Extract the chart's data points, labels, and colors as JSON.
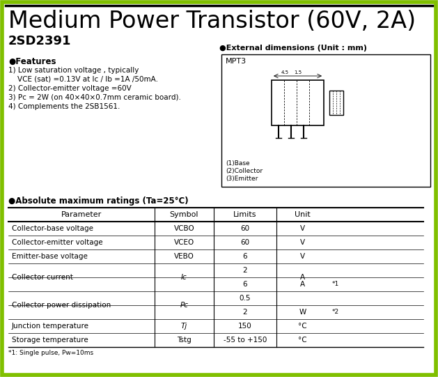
{
  "bg_color": "#e8e8e8",
  "border_color": "#80c000",
  "title": "Medium Power Transistor (60V, 2A)",
  "subtitle": "2SD2391",
  "title_fontsize": 24,
  "subtitle_fontsize": 13,
  "features_header": "●Features",
  "feature_lines": [
    "1) Low saturation voltage , typically",
    "    VCE (sat) =0.13V at Ic / Ib =1A /50mA.",
    "2) Collector-emitter voltage =60V",
    "3) Pc = 2W (on 40×40×0.7mm ceramic board).",
    "4) Complements the 2SB1561."
  ],
  "ext_dim_header": "●External dimensions (Unit : mm)",
  "ext_dim_package": "MPT3",
  "abs_max_header": "●Absolute maximum ratings (Ta=25°C)",
  "table_col_headers": [
    "Parameter",
    "Symbol",
    "Limits",
    "Unit"
  ],
  "table_rows": [
    {
      "param": "Collector-base voltage",
      "symbol": "VCBO",
      "limits": "60",
      "unit": "V",
      "note": "",
      "span": 1
    },
    {
      "param": "Collector-emitter voltage",
      "symbol": "VCEO",
      "limits": "60",
      "unit": "V",
      "note": "",
      "span": 1
    },
    {
      "param": "Emitter-base voltage",
      "symbol": "VEBO",
      "limits": "6",
      "unit": "V",
      "note": "",
      "span": 1
    },
    {
      "param": "Collector current",
      "symbol": "Ic",
      "limits": "2",
      "unit": "A",
      "note": "",
      "span": 2
    },
    {
      "param": "",
      "symbol": "",
      "limits": "6",
      "unit": "A",
      "note": "*1",
      "span": 0
    },
    {
      "param": "Collector power dissipation",
      "symbol": "Pc",
      "limits": "0.5",
      "unit": "",
      "note": "",
      "span": 2
    },
    {
      "param": "",
      "symbol": "",
      "limits": "2",
      "unit": "W",
      "note": "*2",
      "span": 0
    },
    {
      "param": "Junction temperature",
      "symbol": "Tj",
      "limits": "150",
      "unit": "°C",
      "note": "",
      "span": 1
    },
    {
      "param": "Storage temperature",
      "symbol": "Tstg",
      "limits": "-55 to +150",
      "unit": "°C",
      "note": "",
      "span": 1
    }
  ],
  "footnote": "*1: Single pulse, Pw=10ms"
}
